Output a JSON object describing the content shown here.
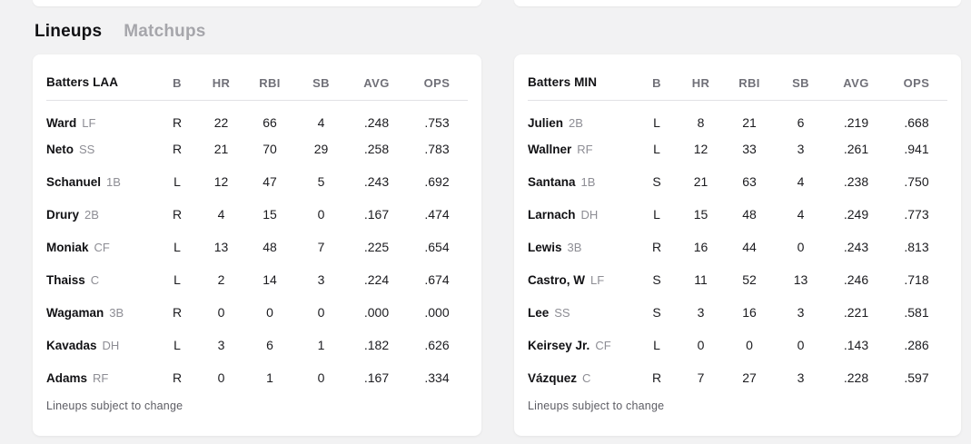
{
  "tabs": [
    {
      "label": "Lineups",
      "active": true
    },
    {
      "label": "Matchups",
      "active": false
    }
  ],
  "columns": [
    "B",
    "HR",
    "RBI",
    "SB",
    "AVG",
    "OPS"
  ],
  "cards": [
    {
      "team": "LAA",
      "title": "Batters LAA",
      "footer": "Lineups subject to change",
      "batters": [
        {
          "name": "Ward",
          "pos": "LF",
          "b": "R",
          "hr": "22",
          "rbi": "66",
          "sb": "4",
          "avg": ".248",
          "ops": ".753"
        },
        {
          "name": "Neto",
          "pos": "SS",
          "b": "R",
          "hr": "21",
          "rbi": "70",
          "sb": "29",
          "avg": ".258",
          "ops": ".783"
        },
        {
          "name": "Schanuel",
          "pos": "1B",
          "b": "L",
          "hr": "12",
          "rbi": "47",
          "sb": "5",
          "avg": ".243",
          "ops": ".692"
        },
        {
          "name": "Drury",
          "pos": "2B",
          "b": "R",
          "hr": "4",
          "rbi": "15",
          "sb": "0",
          "avg": ".167",
          "ops": ".474"
        },
        {
          "name": "Moniak",
          "pos": "CF",
          "b": "L",
          "hr": "13",
          "rbi": "48",
          "sb": "7",
          "avg": ".225",
          "ops": ".654"
        },
        {
          "name": "Thaiss",
          "pos": "C",
          "b": "L",
          "hr": "2",
          "rbi": "14",
          "sb": "3",
          "avg": ".224",
          "ops": ".674"
        },
        {
          "name": "Wagaman",
          "pos": "3B",
          "b": "R",
          "hr": "0",
          "rbi": "0",
          "sb": "0",
          "avg": ".000",
          "ops": ".000"
        },
        {
          "name": "Kavadas",
          "pos": "DH",
          "b": "L",
          "hr": "3",
          "rbi": "6",
          "sb": "1",
          "avg": ".182",
          "ops": ".626"
        },
        {
          "name": "Adams",
          "pos": "RF",
          "b": "R",
          "hr": "0",
          "rbi": "1",
          "sb": "0",
          "avg": ".167",
          "ops": ".334"
        }
      ]
    },
    {
      "team": "MIN",
      "title": "Batters MIN",
      "footer": "Lineups subject to change",
      "batters": [
        {
          "name": "Julien",
          "pos": "2B",
          "b": "L",
          "hr": "8",
          "rbi": "21",
          "sb": "6",
          "avg": ".219",
          "ops": ".668"
        },
        {
          "name": "Wallner",
          "pos": "RF",
          "b": "L",
          "hr": "12",
          "rbi": "33",
          "sb": "3",
          "avg": ".261",
          "ops": ".941"
        },
        {
          "name": "Santana",
          "pos": "1B",
          "b": "S",
          "hr": "21",
          "rbi": "63",
          "sb": "4",
          "avg": ".238",
          "ops": ".750"
        },
        {
          "name": "Larnach",
          "pos": "DH",
          "b": "L",
          "hr": "15",
          "rbi": "48",
          "sb": "4",
          "avg": ".249",
          "ops": ".773"
        },
        {
          "name": "Lewis",
          "pos": "3B",
          "b": "R",
          "hr": "16",
          "rbi": "44",
          "sb": "0",
          "avg": ".243",
          "ops": ".813"
        },
        {
          "name": "Castro, W",
          "pos": "LF",
          "b": "S",
          "hr": "11",
          "rbi": "52",
          "sb": "13",
          "avg": ".246",
          "ops": ".718"
        },
        {
          "name": "Lee",
          "pos": "SS",
          "b": "S",
          "hr": "3",
          "rbi": "16",
          "sb": "3",
          "avg": ".221",
          "ops": ".581"
        },
        {
          "name": "Keirsey Jr.",
          "pos": "CF",
          "b": "L",
          "hr": "0",
          "rbi": "0",
          "sb": "0",
          "avg": ".143",
          "ops": ".286"
        },
        {
          "name": "Vázquez",
          "pos": "C",
          "b": "R",
          "hr": "7",
          "rbi": "27",
          "sb": "3",
          "avg": ".228",
          "ops": ".597"
        }
      ]
    }
  ],
  "colors": {
    "background": "#f2f2f3",
    "card": "#ffffff",
    "text": "#111114",
    "muted": "#707078",
    "divider": "#e2e2e5",
    "inactive_tab": "#a6a6ab"
  }
}
